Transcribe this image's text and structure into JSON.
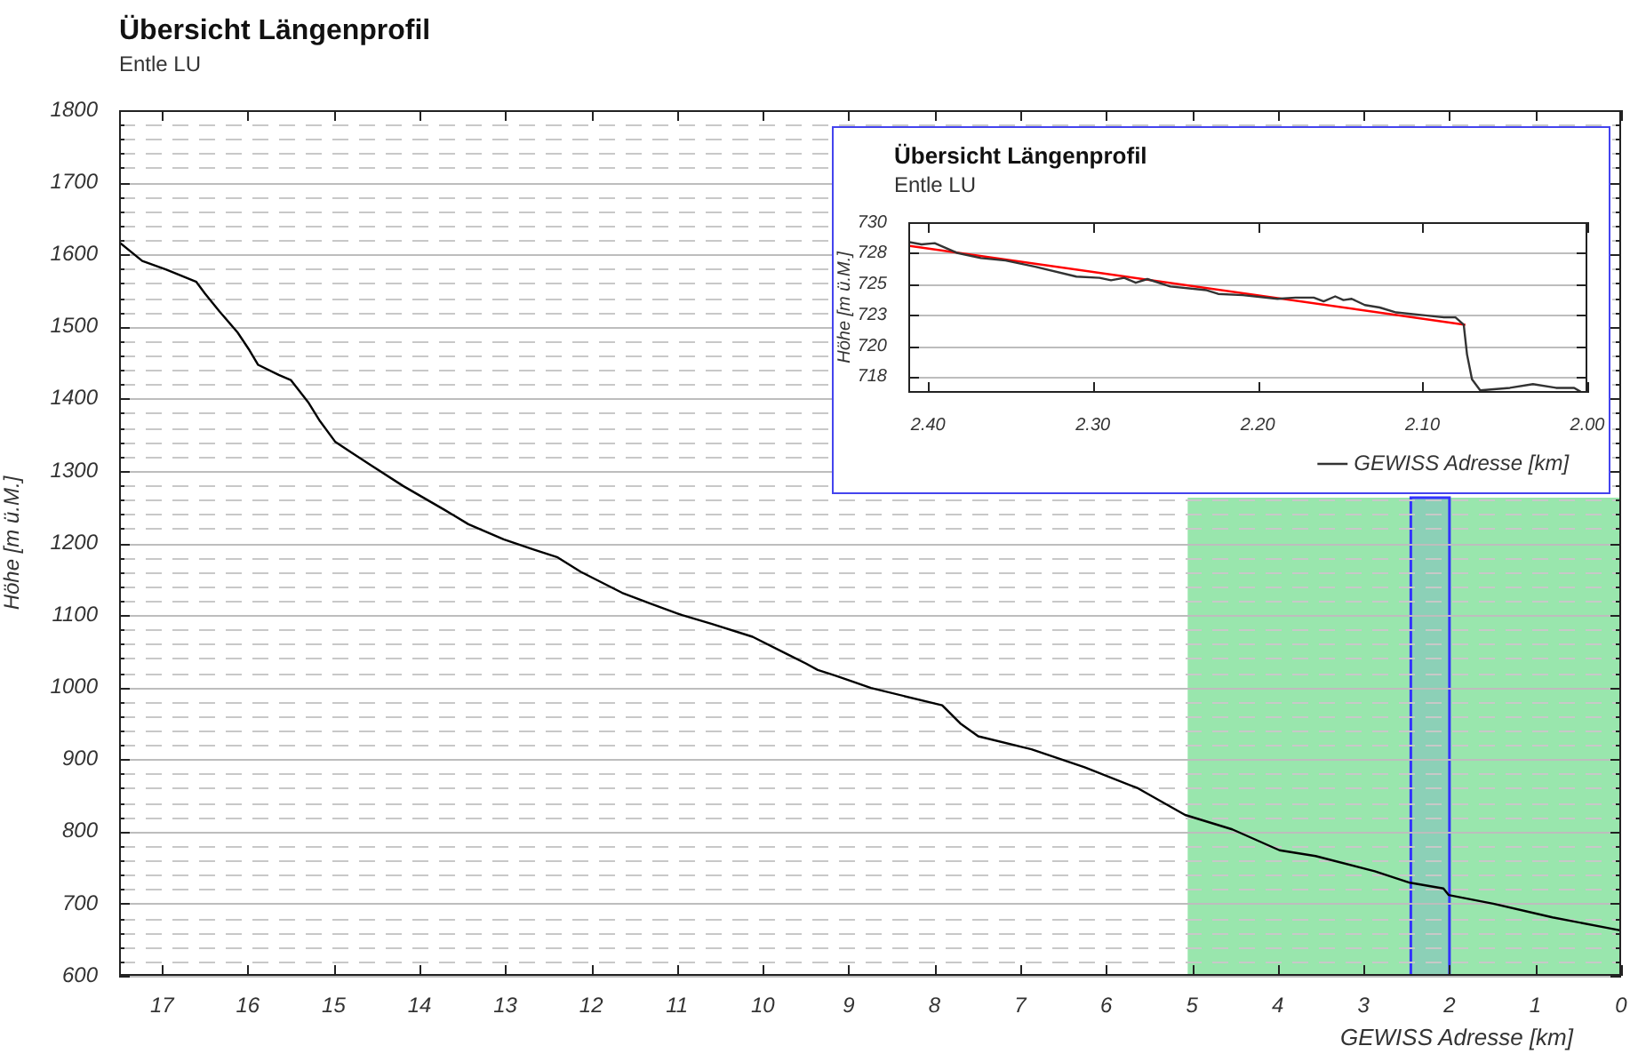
{
  "chart_data": [
    {
      "type": "line",
      "title": "Übersicht Längenprofil",
      "subtitle": "Entle LU",
      "xlabel": "GEWISS Adresse [km]",
      "ylabel": "Höhe [m ü.M.]",
      "series": [
        {
          "color": "#000000",
          "x": [
            17.5,
            17.23,
            16.95,
            16.6,
            16.5,
            16.33,
            16.12,
            15.98,
            15.88,
            15.64,
            15.5,
            15.29,
            15.16,
            14.98,
            14.57,
            14.19,
            13.71,
            13.43,
            13.02,
            12.67,
            12.39,
            12.12,
            11.64,
            11.29,
            10.94,
            10.6,
            10.12,
            9.7,
            9.5,
            9.36,
            9.15,
            8.74,
            7.91,
            7.7,
            7.49,
            6.87,
            6.25,
            5.63,
            5.08,
            4.53,
            3.98,
            3.56,
            2.87,
            2.46,
            2.07,
            2.01,
            1.49,
            0.8,
            0.01
          ],
          "values": [
            1617,
            1591,
            1579,
            1562,
            1546,
            1521,
            1492,
            1467,
            1447,
            1433,
            1426,
            1394,
            1369,
            1340,
            1308,
            1279,
            1246,
            1226,
            1205,
            1191,
            1180,
            1160,
            1131,
            1115,
            1100,
            1088,
            1070,
            1045,
            1033,
            1024,
            1016,
            999,
            975,
            950,
            932,
            914,
            889,
            860,
            823,
            803,
            774,
            766,
            745,
            729,
            721,
            712,
            700,
            681,
            663
          ]
        }
      ],
      "xlim": [
        17.5,
        0
      ],
      "xticks": [
        0,
        1,
        2,
        3,
        4,
        5,
        6,
        7,
        8,
        9,
        10,
        11,
        12,
        13,
        14,
        15,
        16,
        17
      ],
      "ylim": [
        600,
        1800
      ],
      "yticks": [
        600,
        {
          "value": 620,
          "label": null
        },
        {
          "value": 640,
          "label": null
        },
        {
          "value": 660,
          "label": null
        },
        {
          "value": 680,
          "label": null
        },
        700,
        {
          "value": 720,
          "label": null
        },
        {
          "value": 740,
          "label": null
        },
        {
          "value": 760,
          "label": null
        },
        {
          "value": 780,
          "label": null
        },
        800,
        {
          "value": 820,
          "label": null
        },
        {
          "value": 840,
          "label": null
        },
        {
          "value": 860,
          "label": null
        },
        {
          "value": 880,
          "label": null
        },
        900,
        {
          "value": 920,
          "label": null
        },
        {
          "value": 940,
          "label": null
        },
        {
          "value": 960,
          "label": null
        },
        {
          "value": 980,
          "label": null
        },
        1000,
        {
          "value": 1020,
          "label": null
        },
        {
          "value": 1040,
          "label": null
        },
        {
          "value": 1060,
          "label": null
        },
        {
          "value": 1080,
          "label": null
        },
        1100,
        {
          "value": 1120,
          "label": null
        },
        {
          "value": 1140,
          "label": null
        },
        {
          "value": 1160,
          "label": null
        },
        {
          "value": 1180,
          "label": null
        },
        1200,
        {
          "value": 1220,
          "label": null
        },
        {
          "value": 1240,
          "label": null
        },
        {
          "value": 1260,
          "label": null
        },
        {
          "value": 1280,
          "label": null
        },
        1300,
        {
          "value": 1320,
          "label": null
        },
        {
          "value": 1340,
          "label": null
        },
        {
          "value": 1360,
          "label": null
        },
        {
          "value": 1380,
          "label": null
        },
        1400,
        {
          "value": 1420,
          "label": null
        },
        {
          "value": 1440,
          "label": null
        },
        {
          "value": 1460,
          "label": null
        },
        {
          "value": 1480,
          "label": null
        },
        1500,
        {
          "value": 1520,
          "label": null
        },
        {
          "value": 1540,
          "label": null
        },
        {
          "value": 1560,
          "label": null
        },
        {
          "value": 1580,
          "label": null
        },
        1600,
        {
          "value": 1620,
          "label": null
        },
        {
          "value": 1640,
          "label": null
        },
        {
          "value": 1660,
          "label": null
        },
        {
          "value": 1680,
          "label": null
        },
        1700,
        {
          "value": 1720,
          "label": null
        },
        {
          "value": 1740,
          "label": null
        },
        {
          "value": 1760,
          "label": null
        },
        {
          "value": 1780,
          "label": null
        },
        1800
      ],
      "grid": "y",
      "marker": "none",
      "bands": [
        {
          "axis": "x",
          "from": 5.05,
          "to": 0,
          "color": "#99e6ad"
        },
        {
          "axis": "x",
          "from": 2.45,
          "to": 2.0,
          "color": "#3333ff"
        }
      ]
    },
    {
      "type": "line",
      "title": "Übersicht Längenprofil",
      "subtitle": "Entle LU",
      "ylabel": "Höhe [m ü.M.]",
      "series": [
        {
          "name": "GEWISS Adresse [km]",
          "color": "#333333",
          "x": [
            2.412,
            2.404,
            2.396,
            2.382,
            2.368,
            2.353,
            2.335,
            2.31,
            2.296,
            2.289,
            2.281,
            2.274,
            2.267,
            2.253,
            2.231,
            2.224,
            2.209,
            2.188,
            2.177,
            2.166,
            2.16,
            2.153,
            2.148,
            2.143,
            2.135,
            2.126,
            2.116,
            2.101,
            2.087,
            2.08,
            2.075,
            2.073,
            2.07,
            2.065,
            2.047,
            2.033,
            2.019,
            2.008,
            2.003
          ],
          "values": [
            728.4,
            728.2,
            728.3,
            727.5,
            727.1,
            726.9,
            726.4,
            725.6,
            725.5,
            725.3,
            725.5,
            725.1,
            725.4,
            724.8,
            724.5,
            724.2,
            724.1,
            723.8,
            723.9,
            723.9,
            723.6,
            724.0,
            723.7,
            723.8,
            723.3,
            723.1,
            722.7,
            722.5,
            722.3,
            722.3,
            721.7,
            719.3,
            717.3,
            716.4,
            716.6,
            716.9,
            716.6,
            716.6,
            716.2
          ]
        },
        {
          "type": "line",
          "color": "#ff0000",
          "x": [
            2.412,
            2.074
          ],
          "values": [
            728.1,
            721.7
          ]
        }
      ],
      "xlim": [
        2.412,
        2.0
      ],
      "xticks": [
        {
          "value": 2.0,
          "label": "2.00"
        },
        {
          "value": 2.1,
          "label": "2.10"
        },
        {
          "value": 2.2,
          "label": "2.20"
        },
        {
          "value": 2.3,
          "label": "2.30"
        },
        {
          "value": 2.4,
          "label": "2.40"
        }
      ],
      "ylim": [
        716.2,
        730
      ],
      "yticks": [
        {
          "value": 717.5,
          "label": "718"
        },
        720,
        {
          "value": 722.5,
          "label": "723"
        },
        725,
        {
          "value": 727.5,
          "label": "728"
        },
        730
      ],
      "grid": "y",
      "marker": "none",
      "legend": "bottom right"
    }
  ]
}
